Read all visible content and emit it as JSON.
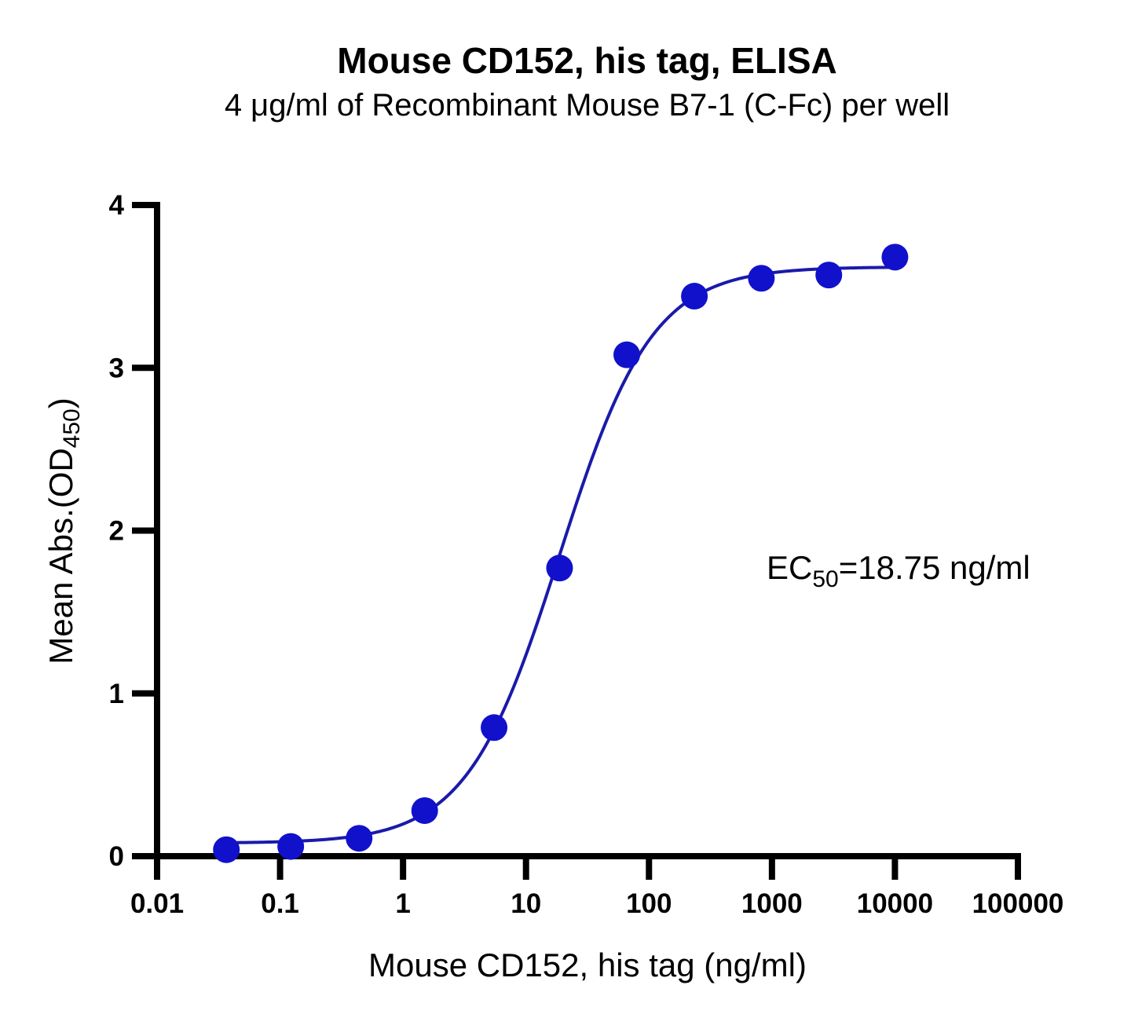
{
  "chart_data": {
    "type": "scatter",
    "title": "Mouse CD152, his tag, ELISA",
    "subtitle": "4 μg/ml of Recombinant Mouse B7-1 (C-Fc) per well",
    "xlabel": "Mouse CD152, his tag (ng/ml)",
    "ylabel_main": "Mean Abs.(OD",
    "ylabel_sub": "450",
    "ylabel_close": ")",
    "x_scale": "log",
    "xlim": [
      0.01,
      100000
    ],
    "ylim": [
      0,
      4
    ],
    "x_ticks": [
      0.01,
      0.1,
      1,
      10,
      100,
      1000,
      10000,
      100000
    ],
    "x_tick_labels": [
      "0.01",
      "0.1",
      "1",
      "10",
      "100",
      "1000",
      "10000",
      "100000"
    ],
    "y_ticks": [
      0,
      1,
      2,
      3,
      4
    ],
    "y_tick_labels": [
      "0",
      "1",
      "2",
      "3",
      "4"
    ],
    "grid": false,
    "legend": "none",
    "colors": {
      "series": "#1111cc",
      "curve": "#1a1aaa",
      "axis": "#000000"
    },
    "series": [
      {
        "x": [
          0.0366,
          0.1221,
          0.4395,
          1.5,
          5.5,
          18.75,
          66,
          234,
          820,
          2900,
          10000
        ],
        "y": [
          0.04,
          0.06,
          0.11,
          0.28,
          0.79,
          1.77,
          3.08,
          3.44,
          3.55,
          3.57,
          3.68
        ]
      }
    ],
    "fit": {
      "model": "4PL",
      "bottom": 0.08,
      "top": 3.62,
      "ec50": 18.75,
      "hill": 1.15
    },
    "annotation": {
      "main": "EC",
      "sub": "50",
      "rest": "=18.75 ng/ml"
    }
  }
}
